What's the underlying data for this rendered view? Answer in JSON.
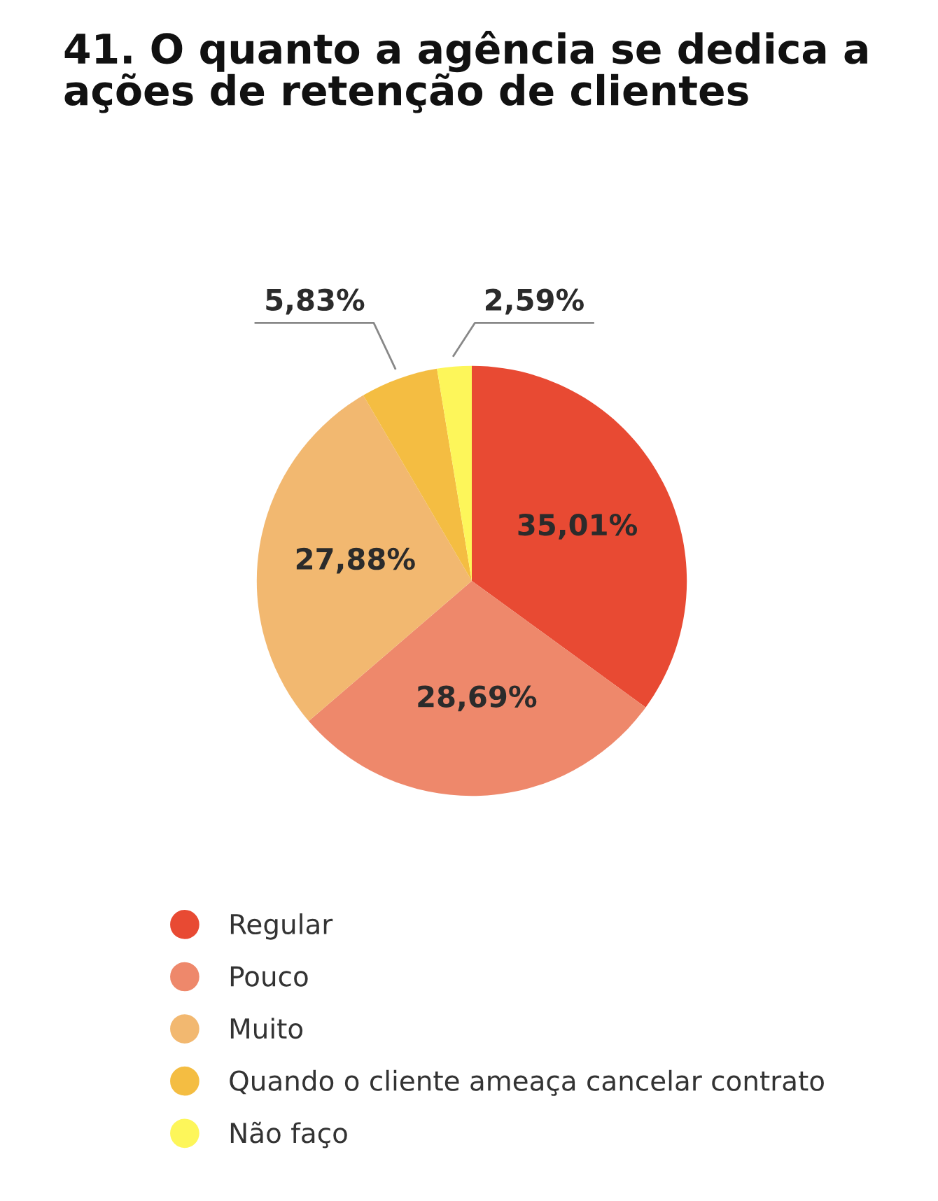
{
  "chart_data": {
    "type": "pie",
    "title": "41. O quanto a agência se dedica a\nações de retenção de clientes",
    "categories": [
      "Regular",
      "Pouco",
      "Muito",
      "Quando o cliente ameaça cancelar contrato",
      "Não faço"
    ],
    "values": [
      35.01,
      28.69,
      27.88,
      5.83,
      2.59
    ],
    "value_labels": [
      "35,01%",
      "28,69%",
      "27,88%",
      "5,83%",
      "2,59%"
    ],
    "colors": [
      "#e84a33",
      "#ee886b",
      "#f2b870",
      "#f4bd42",
      "#fdf65a"
    ],
    "legend": "bottom"
  }
}
